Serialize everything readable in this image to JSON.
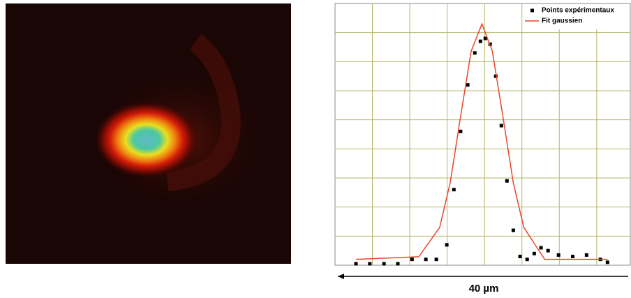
{
  "chart_data": {
    "type": "line",
    "annotation": "40 µm",
    "xlim": [
      0,
      7.9
    ],
    "ylim": [
      0,
      9
    ],
    "xticks": [
      1,
      2,
      3,
      4,
      5,
      6,
      7
    ],
    "yticks": [
      1,
      2,
      3,
      4,
      5,
      6,
      7,
      8
    ],
    "grid": true,
    "grid_color": "#b5b56a",
    "legend": "upper right",
    "series": [
      {
        "name": "Points expérimentaux",
        "mode": "markers",
        "color": "#000000",
        "x": [
          0.56,
          0.93,
          1.31,
          1.68,
          2.06,
          2.43,
          2.71,
          2.99,
          3.18,
          3.36,
          3.55,
          3.74,
          3.89,
          4.02,
          4.15,
          4.3,
          4.45,
          4.6,
          4.77,
          4.95,
          5.14,
          5.33,
          5.51,
          5.7,
          5.98,
          6.36,
          6.73,
          7.1,
          7.29
        ],
        "values": [
          0.05,
          0.05,
          0.05,
          0.05,
          0.2,
          0.2,
          0.2,
          0.7,
          2.6,
          4.6,
          6.2,
          7.3,
          7.7,
          7.8,
          7.6,
          6.5,
          4.8,
          2.9,
          1.2,
          0.3,
          0.2,
          0.4,
          0.6,
          0.5,
          0.35,
          0.3,
          0.35,
          0.2,
          0.1
        ]
      },
      {
        "name": "Fit gaussien",
        "mode": "line",
        "color": "#e8472a",
        "x": [
          0.56,
          2.24,
          2.8,
          3.08,
          3.36,
          3.64,
          3.93,
          4.21,
          4.49,
          4.77,
          5.05,
          5.61,
          7.29
        ],
        "values": [
          0.2,
          0.29,
          1.3,
          2.83,
          5.12,
          7.35,
          8.3,
          7.35,
          5.12,
          2.83,
          1.3,
          0.2,
          0.2
        ]
      }
    ]
  }
}
